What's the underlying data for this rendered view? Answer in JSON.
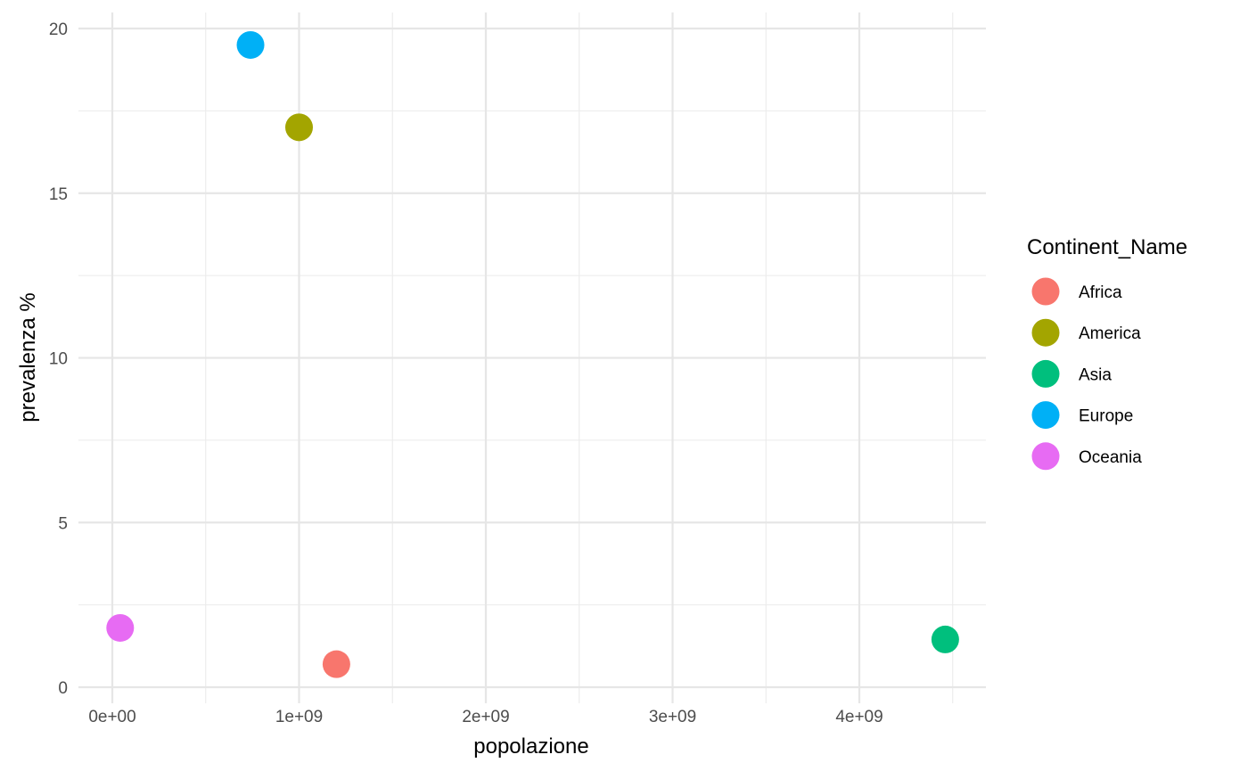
{
  "chart_data": {
    "type": "scatter",
    "xlabel": "popolazione",
    "ylabel": "prevalenza %",
    "xlim": [
      -100000000,
      4700000000
    ],
    "ylim": [
      0,
      20
    ],
    "x_ticks": [
      0,
      1000000000,
      2000000000,
      3000000000,
      4000000000
    ],
    "x_tick_labels": [
      "0e+00",
      "1e+09",
      "2e+09",
      "3e+09",
      "4e+09"
    ],
    "y_ticks": [
      0,
      5,
      10,
      15,
      20
    ],
    "y_tick_labels": [
      "0",
      "5",
      "10",
      "15",
      "20"
    ],
    "grid": true,
    "legend": {
      "title": "Continent_Name",
      "position": "right"
    },
    "series": [
      {
        "name": "Africa",
        "color": "#F8766D",
        "x": 1200000000,
        "y": 0.7
      },
      {
        "name": "America",
        "color": "#A3A500",
        "x": 1000000000,
        "y": 17.0
      },
      {
        "name": "Asia",
        "color": "#00BF7D",
        "x": 4460000000,
        "y": 1.45
      },
      {
        "name": "Europe",
        "color": "#00B0F6",
        "x": 740000000,
        "y": 19.5
      },
      {
        "name": "Oceania",
        "color": "#E76BF3",
        "x": 42000000,
        "y": 1.8
      }
    ]
  }
}
